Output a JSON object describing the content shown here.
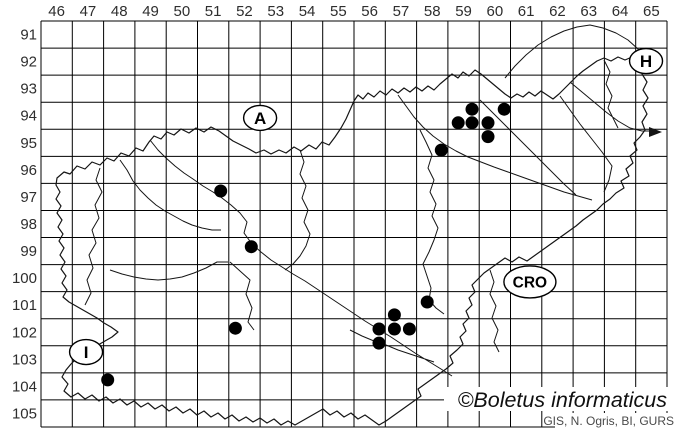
{
  "map": {
    "grid": {
      "col_start": 46,
      "row_start": 91,
      "col_labels": [
        "46",
        "47",
        "48",
        "49",
        "50",
        "51",
        "52",
        "53",
        "54",
        "55",
        "56",
        "57",
        "58",
        "59",
        "60",
        "61",
        "62",
        "63",
        "64",
        "65"
      ],
      "row_labels": [
        "91",
        "92",
        "93",
        "94",
        "95",
        "96",
        "97",
        "98",
        "99",
        "100",
        "101",
        "102",
        "103",
        "104",
        "105"
      ]
    },
    "country_labels": [
      {
        "text": "A",
        "col": 53.0,
        "row": 94.58
      },
      {
        "text": "H",
        "col": 65.33,
        "row": 92.48
      },
      {
        "text": "CRO",
        "col": 61.62,
        "row": 100.64
      },
      {
        "text": "I",
        "col": 47.44,
        "row": 103.23
      }
    ],
    "occurrences": [
      {
        "col": 59.77,
        "row": 94.26
      },
      {
        "col": 60.8,
        "row": 94.26
      },
      {
        "col": 59.33,
        "row": 94.76
      },
      {
        "col": 59.77,
        "row": 94.76
      },
      {
        "col": 60.28,
        "row": 94.76
      },
      {
        "col": 60.28,
        "row": 95.27
      },
      {
        "col": 58.79,
        "row": 95.77
      },
      {
        "col": 58.34,
        "row": 101.38
      },
      {
        "col": 57.29,
        "row": 101.86
      },
      {
        "col": 56.8,
        "row": 102.38
      },
      {
        "col": 57.29,
        "row": 102.38
      },
      {
        "col": 57.77,
        "row": 102.38
      },
      {
        "col": 56.8,
        "row": 102.9
      },
      {
        "col": 51.74,
        "row": 97.28
      },
      {
        "col": 52.72,
        "row": 99.34
      },
      {
        "col": 52.21,
        "row": 102.35
      },
      {
        "col": 48.13,
        "row": 104.26
      }
    ],
    "copyright": "©Boletus informaticus",
    "credits": "GIS, N. Ogris, BI, GURS"
  },
  "colors": {
    "grid_line": "#000000",
    "map_line": "#151515",
    "dot": "#000000",
    "axis_label": "#2e2e2e",
    "copyright_text": "#101010",
    "credits_text": "#4a4a4a",
    "label_ellipse_fill": "#ffffff"
  }
}
